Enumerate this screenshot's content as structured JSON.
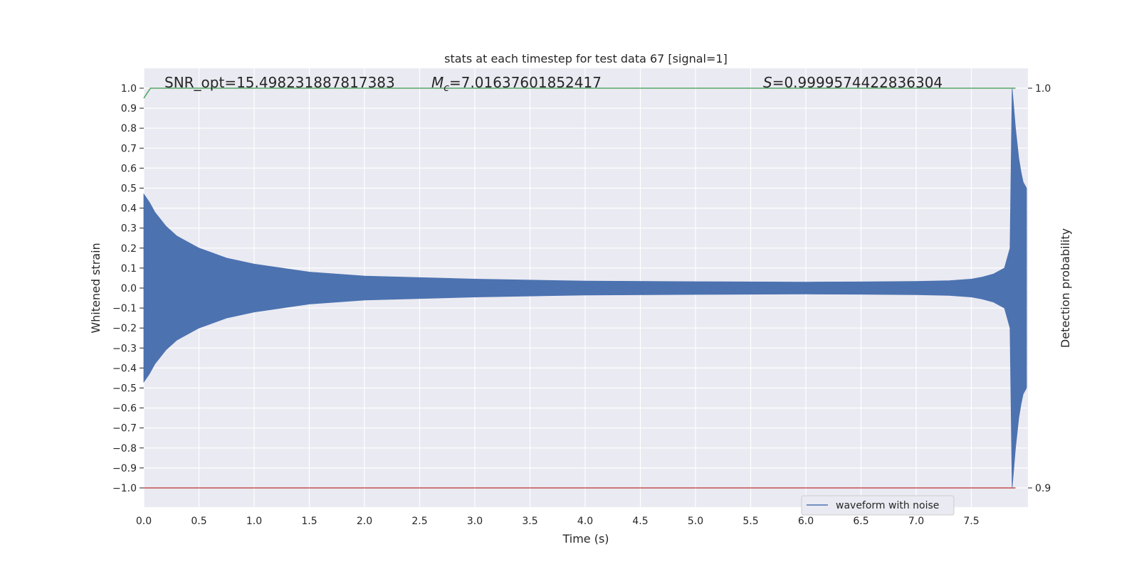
{
  "chart_data": {
    "type": "line",
    "title": "stats at each timestep for test data 67 [signal=1]",
    "xlabel": "Time (s)",
    "ylabel": "Whitened strain",
    "y2label": "Detection probability",
    "xlim": [
      0.0,
      8.0
    ],
    "ylim": [
      -1.1,
      1.1
    ],
    "y2lim": [
      0.895,
      1.005
    ],
    "xticks": [
      "0.0",
      "0.5",
      "1.0",
      "1.5",
      "2.0",
      "2.5",
      "3.0",
      "3.5",
      "4.0",
      "4.5",
      "5.0",
      "5.5",
      "6.0",
      "6.5",
      "7.0",
      "7.5"
    ],
    "yticks": [
      "1.0",
      "0.9",
      "0.8",
      "0.7",
      "0.6",
      "0.5",
      "0.4",
      "0.3",
      "0.2",
      "0.1",
      "0.0",
      "−0.1",
      "−0.2",
      "−0.3",
      "−0.4",
      "−0.5",
      "−0.6",
      "−0.7",
      "−0.8",
      "−0.9",
      "−1.0"
    ],
    "y2ticks": [
      "1.0",
      "0.9"
    ],
    "grid": true,
    "legend_position": "lower-right",
    "annotations": {
      "snr": "SNR_opt=15.498231887817383",
      "mc_symbol": "M",
      "mc_sub": "c",
      "mc_value": "=7.01637601852417",
      "s_symbol": "S",
      "s_value": "=0.9999574422836304"
    },
    "series": [
      {
        "name": "waveform with noise",
        "color": "#4c72b0",
        "axis": "left",
        "kind": "envelope",
        "x": [
          0.0,
          0.05,
          0.1,
          0.2,
          0.3,
          0.5,
          0.75,
          1.0,
          1.5,
          2.0,
          3.0,
          4.0,
          5.0,
          6.0,
          6.5,
          7.0,
          7.3,
          7.5,
          7.6,
          7.7,
          7.8,
          7.85,
          7.86,
          7.87,
          7.9,
          7.93,
          7.95,
          7.97,
          8.0
        ],
        "upper": [
          0.47,
          0.43,
          0.38,
          0.31,
          0.26,
          0.2,
          0.15,
          0.12,
          0.08,
          0.06,
          0.045,
          0.035,
          0.032,
          0.03,
          0.031,
          0.033,
          0.037,
          0.045,
          0.055,
          0.07,
          0.1,
          0.2,
          0.6,
          1.0,
          0.8,
          0.65,
          0.58,
          0.53,
          0.5
        ],
        "lower": [
          -0.47,
          -0.43,
          -0.38,
          -0.31,
          -0.26,
          -0.2,
          -0.15,
          -0.12,
          -0.08,
          -0.06,
          -0.045,
          -0.035,
          -0.032,
          -0.03,
          -0.031,
          -0.033,
          -0.037,
          -0.045,
          -0.055,
          -0.07,
          -0.1,
          -0.2,
          -0.6,
          -1.0,
          -0.8,
          -0.65,
          -0.58,
          -0.53,
          -0.5
        ]
      },
      {
        "name": "",
        "color": "#55a868",
        "axis": "right",
        "kind": "line",
        "x": [
          0.0,
          0.06,
          7.9
        ],
        "y": [
          0.9975,
          1.0,
          1.0
        ]
      },
      {
        "name": "",
        "color": "#c44e52",
        "axis": "left",
        "kind": "line",
        "x": [
          0.0,
          7.9
        ],
        "y": [
          -1.0,
          -1.0
        ]
      }
    ]
  }
}
